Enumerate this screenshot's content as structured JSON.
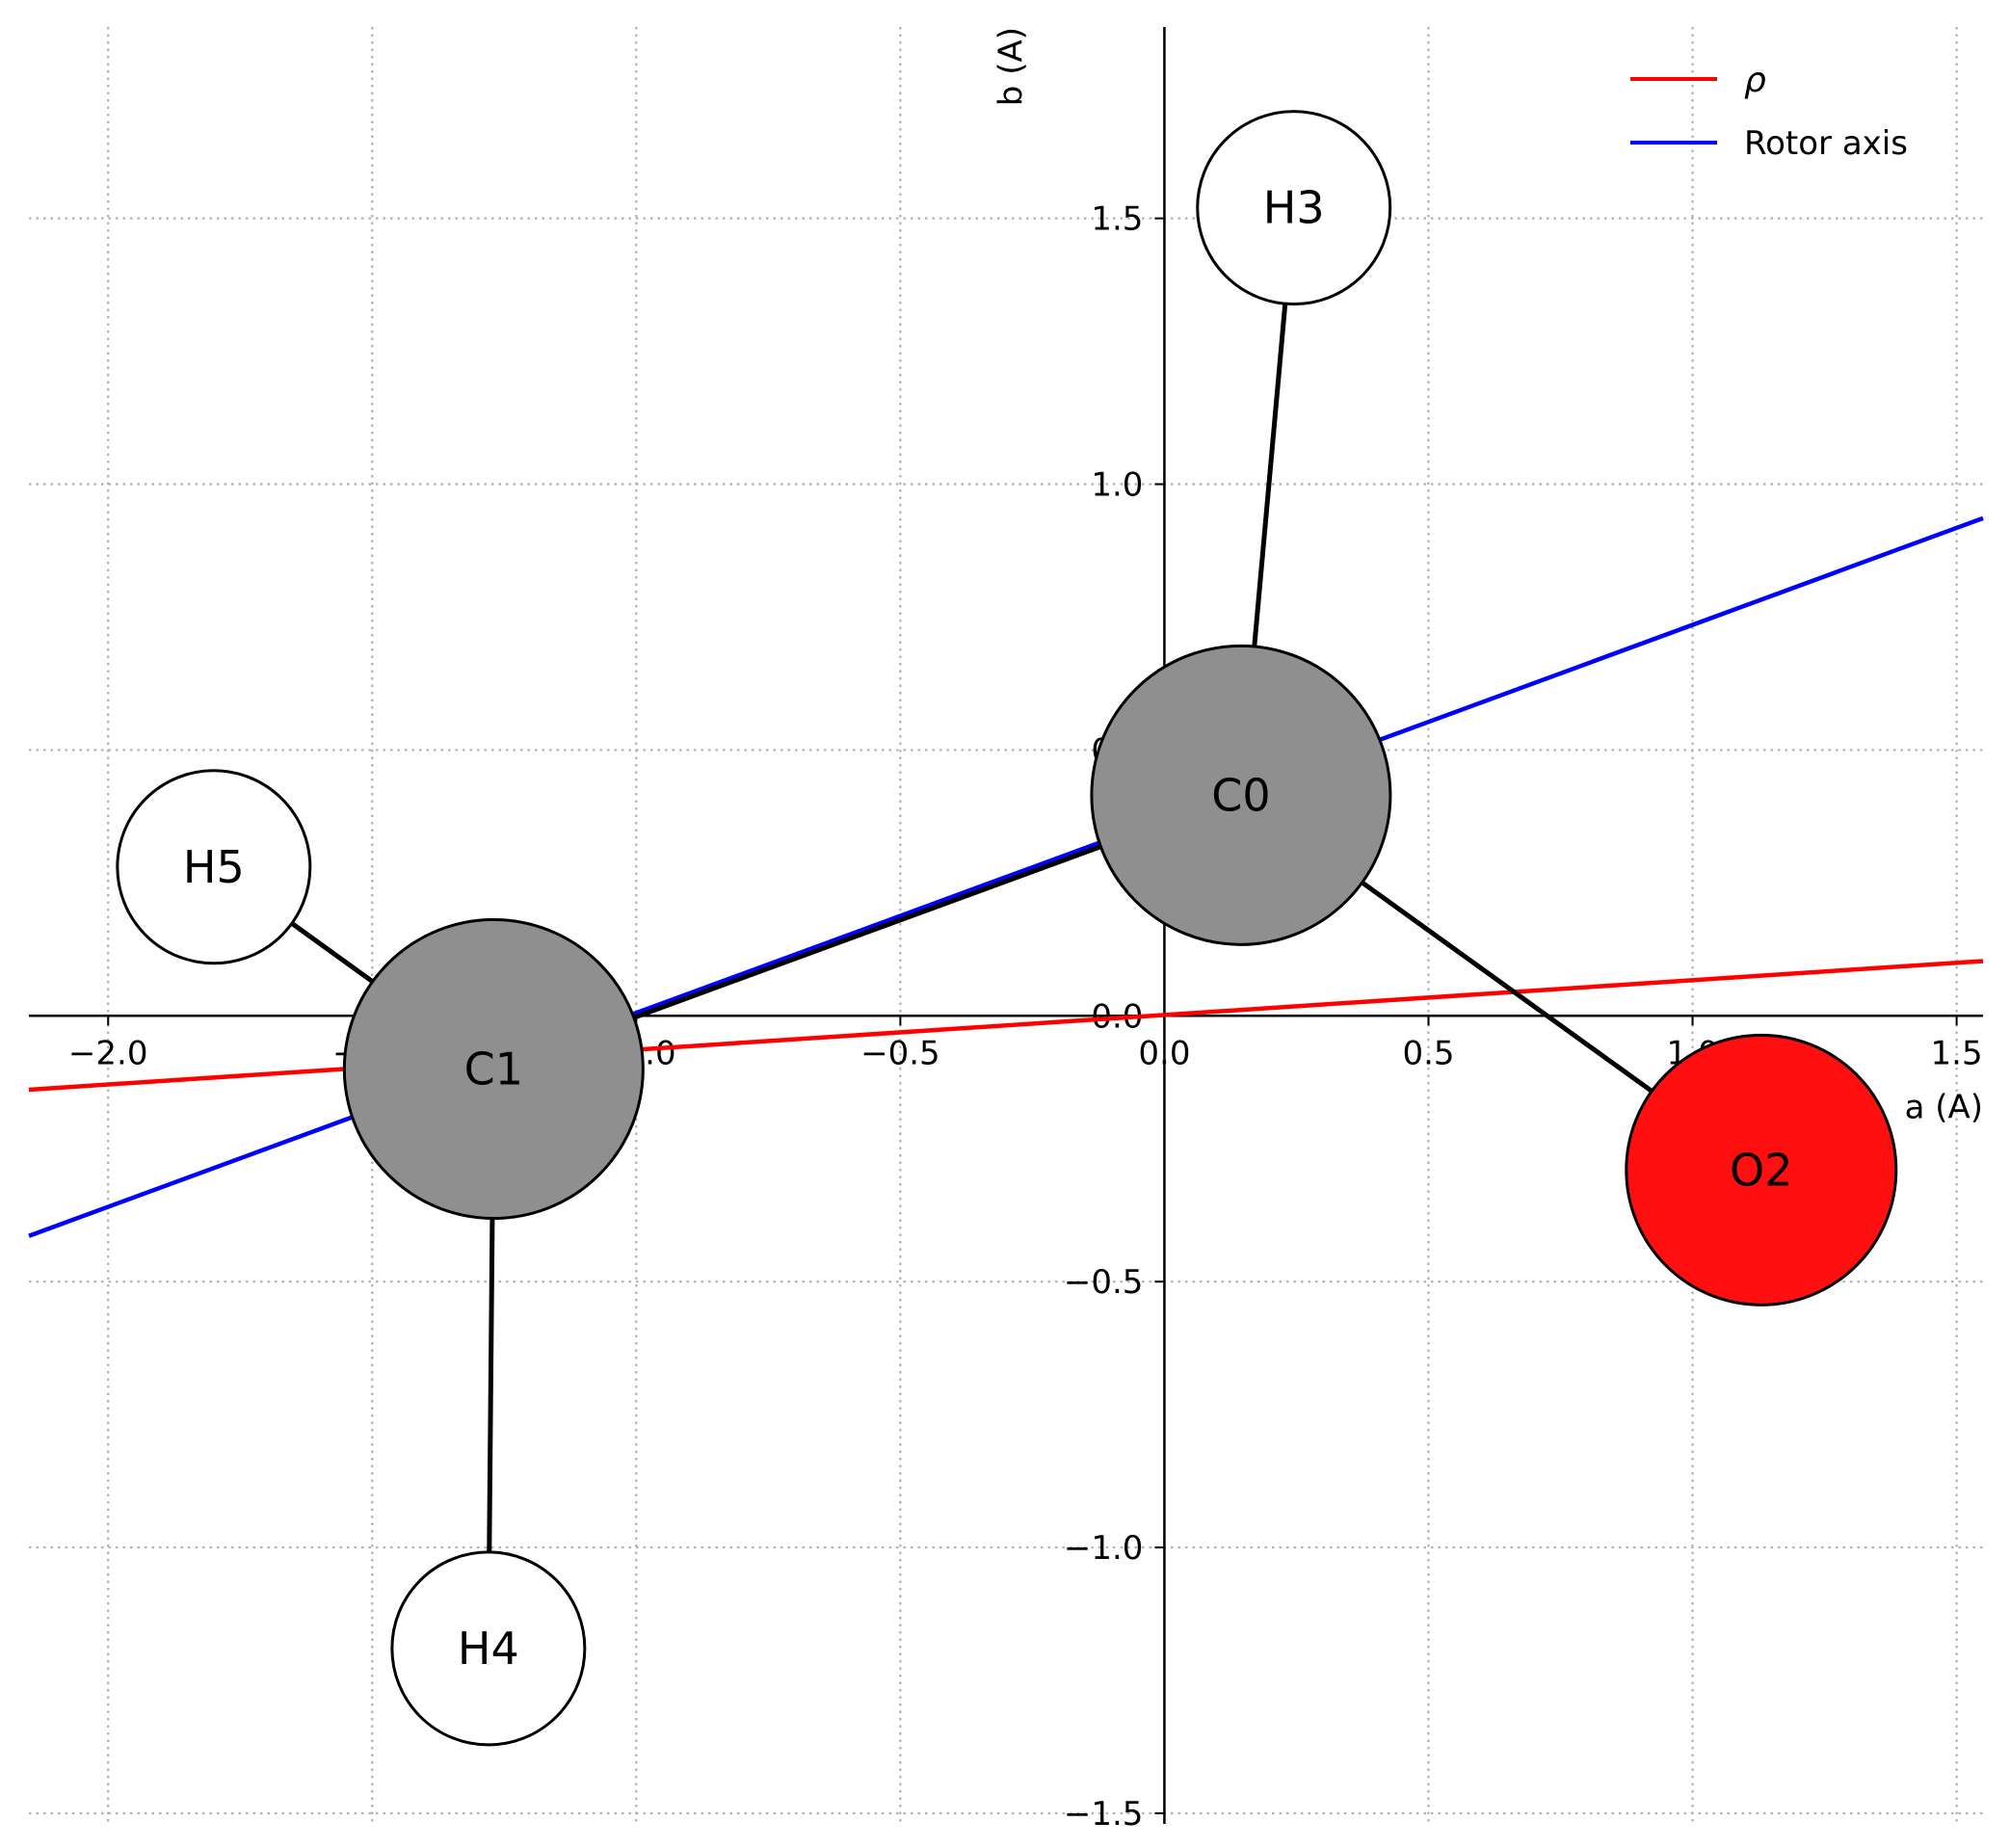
{
  "chart_data": {
    "type": "scatter",
    "title": "",
    "xlabel": "a (A)",
    "ylabel": "b (A)",
    "xlim": [
      -2.15,
      1.55
    ],
    "ylim": [
      -1.52,
      1.86
    ],
    "xticks": [
      -2.0,
      -1.5,
      -1.0,
      -0.5,
      0.0,
      0.5,
      1.0,
      1.5
    ],
    "yticks": [
      -1.5,
      -1.0,
      -0.5,
      0.0,
      0.5,
      1.0,
      1.5
    ],
    "xtick_labels": [
      "−2.0",
      "−1.5",
      "−1.0",
      "−0.5",
      "0.0",
      "0.5",
      "1.0",
      "1.5"
    ],
    "ytick_labels": [
      "−1.5",
      "−1.0",
      "−0.5",
      "0.0",
      "0.5",
      "1.0",
      "1.5"
    ],
    "grid": true,
    "legend_position": "top-right",
    "legend": [
      {
        "label": "ρ",
        "color": "#ff0000"
      },
      {
        "label": "Rotor axis",
        "color": "#0000ff"
      }
    ],
    "atoms": [
      {
        "label": "C0",
        "x": 0.145,
        "y": 0.415,
        "element": "C",
        "color": "#8f8f8f"
      },
      {
        "label": "C1",
        "x": -1.27,
        "y": -0.1,
        "element": "C",
        "color": "#8f8f8f"
      },
      {
        "label": "O2",
        "x": 1.13,
        "y": -0.29,
        "element": "O",
        "color": "#ff0f0f"
      },
      {
        "label": "H3",
        "x": 0.245,
        "y": 1.52,
        "element": "H",
        "color": "#ffffff"
      },
      {
        "label": "H4",
        "x": -1.28,
        "y": -1.19,
        "element": "H",
        "color": "#ffffff"
      },
      {
        "label": "H5",
        "x": -1.8,
        "y": 0.28,
        "element": "H",
        "color": "#ffffff"
      }
    ],
    "bonds": [
      [
        "C0",
        "C1"
      ],
      [
        "C0",
        "O2"
      ],
      [
        "C0",
        "H3"
      ],
      [
        "C1",
        "H4"
      ],
      [
        "C1",
        "H5"
      ]
    ],
    "series": [
      {
        "name": "ρ",
        "color": "#ff0000",
        "x": [
          -2.15,
          1.55
        ],
        "y": [
          -0.139,
          0.103
        ]
      },
      {
        "name": "Rotor axis",
        "color": "#0000ff",
        "x": [
          -2.15,
          1.55
        ],
        "y": [
          -0.414,
          0.936
        ]
      }
    ]
  }
}
